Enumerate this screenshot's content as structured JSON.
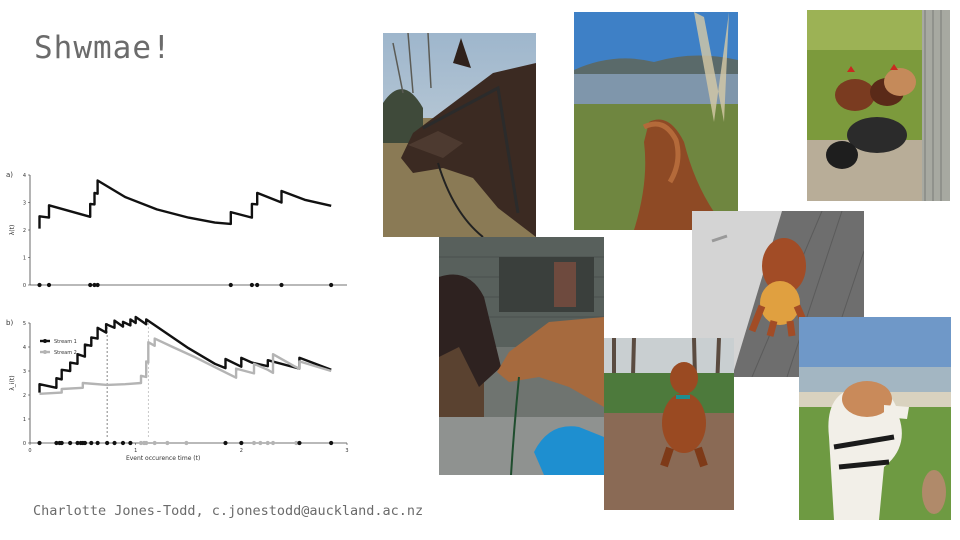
{
  "slide": {
    "title": "Shwmae!",
    "credit": "Charlotte Jones-Todd, c.jonestodd@auckland.ac.nz"
  },
  "photos": [
    "horse-portrait",
    "lake-view-with-horse-mane",
    "chickens-on-tyre",
    "horses-nuzzling-at-stable",
    "dog-on-wooden-floor",
    "dog-sitting-in-forest",
    "dog-on-beach-grass"
  ],
  "chart_data": [
    {
      "type": "line",
      "panel_label": "a)",
      "ylabel": "λ(t)",
      "ylim": [
        0,
        4
      ],
      "yticks": [
        "0",
        "1",
        "2",
        "3",
        "4"
      ],
      "xlim": [
        0,
        3
      ],
      "grid": false,
      "color": "#111111",
      "series": [
        {
          "values": [
            [
              0.09,
              2.05
            ],
            [
              0.09,
              2.5
            ],
            [
              0.18,
              2.45
            ],
            [
              0.18,
              2.9
            ],
            [
              0.57,
              2.48
            ],
            [
              0.57,
              2.95
            ],
            [
              0.61,
              2.93
            ],
            [
              0.61,
              3.35
            ],
            [
              0.64,
              3.32
            ],
            [
              0.64,
              3.8
            ],
            [
              0.9,
              3.2
            ],
            [
              1.2,
              2.75
            ],
            [
              1.5,
              2.45
            ],
            [
              1.75,
              2.27
            ],
            [
              1.9,
              2.22
            ],
            [
              1.9,
              2.65
            ],
            [
              2.1,
              2.45
            ],
            [
              2.1,
              2.95
            ],
            [
              2.15,
              2.93
            ],
            [
              2.15,
              3.35
            ],
            [
              2.38,
              3.0
            ],
            [
              2.38,
              3.42
            ],
            [
              2.6,
              3.1
            ],
            [
              2.85,
              2.88
            ]
          ]
        }
      ],
      "events": [
        0.09,
        0.18,
        0.57,
        0.61,
        0.64,
        1.9,
        2.1,
        2.15,
        2.38,
        2.85
      ]
    },
    {
      "type": "line",
      "panel_label": "b)",
      "ylabel": "λ_i(t)",
      "xlabel": "Event occurence time (t)",
      "ylim": [
        0,
        5
      ],
      "yticks": [
        "0",
        "1",
        "2",
        "3",
        "4",
        "5"
      ],
      "xlim": [
        0,
        3
      ],
      "xticks": [
        "0",
        "1",
        "2",
        "3"
      ],
      "grid": false,
      "legend_position": "top-left",
      "vlines": [
        0.73,
        1.12
      ],
      "series": [
        {
          "name": "Stream 1",
          "color": "#111111",
          "values": [
            [
              0.09,
              2.1
            ],
            [
              0.09,
              2.45
            ],
            [
              0.25,
              2.3
            ],
            [
              0.25,
              2.7
            ],
            [
              0.3,
              2.65
            ],
            [
              0.3,
              3.05
            ],
            [
              0.38,
              3.0
            ],
            [
              0.38,
              3.35
            ],
            [
              0.45,
              3.3
            ],
            [
              0.45,
              3.7
            ],
            [
              0.52,
              3.6
            ],
            [
              0.52,
              4.1
            ],
            [
              0.58,
              4.05
            ],
            [
              0.58,
              4.4
            ],
            [
              0.64,
              4.35
            ],
            [
              0.64,
              4.8
            ],
            [
              0.72,
              4.6
            ],
            [
              0.72,
              4.95
            ],
            [
              0.8,
              4.8
            ],
            [
              0.8,
              5.1
            ],
            [
              0.88,
              4.85
            ],
            [
              0.88,
              5.05
            ],
            [
              0.95,
              4.9
            ],
            [
              0.95,
              5.15
            ],
            [
              1.0,
              5.0
            ],
            [
              1.0,
              5.25
            ],
            [
              1.1,
              4.95
            ],
            [
              1.1,
              5.15
            ],
            [
              1.5,
              3.95
            ],
            [
              1.75,
              3.3
            ],
            [
              1.85,
              3.12
            ],
            [
              1.85,
              3.5
            ],
            [
              2.0,
              3.18
            ],
            [
              2.0,
              3.55
            ],
            [
              2.1,
              3.35
            ],
            [
              2.25,
              3.2
            ],
            [
              2.25,
              3.45
            ],
            [
              2.55,
              3.1
            ],
            [
              2.55,
              3.55
            ],
            [
              2.85,
              3.05
            ]
          ]
        },
        {
          "name": "Stream 2",
          "color": "#b4b4b4",
          "values": [
            [
              0.09,
              2.05
            ],
            [
              0.3,
              2.1
            ],
            [
              0.3,
              2.25
            ],
            [
              0.5,
              2.3
            ],
            [
              0.5,
              2.5
            ],
            [
              0.73,
              2.42
            ],
            [
              0.9,
              2.45
            ],
            [
              1.05,
              2.5
            ],
            [
              1.05,
              2.8
            ],
            [
              1.1,
              2.75
            ],
            [
              1.1,
              3.4
            ],
            [
              1.12,
              3.35
            ],
            [
              1.12,
              4.2
            ],
            [
              1.18,
              4.05
            ],
            [
              1.18,
              4.35
            ],
            [
              1.35,
              4.0
            ],
            [
              1.55,
              3.6
            ],
            [
              1.8,
              3.05
            ],
            [
              1.95,
              2.72
            ],
            [
              1.95,
              3.1
            ],
            [
              2.12,
              2.9
            ],
            [
              2.12,
              3.3
            ],
            [
              2.25,
              3.05
            ],
            [
              2.3,
              2.92
            ],
            [
              2.3,
              3.7
            ],
            [
              2.5,
              3.2
            ],
            [
              2.55,
              3.1
            ],
            [
              2.55,
              3.4
            ],
            [
              2.85,
              3.0
            ]
          ]
        }
      ],
      "events": [
        {
          "t": 0.09,
          "stream": 1
        },
        {
          "t": 0.25,
          "stream": 1
        },
        {
          "t": 0.28,
          "stream": 1
        },
        {
          "t": 0.3,
          "stream": 1
        },
        {
          "t": 0.38,
          "stream": 1
        },
        {
          "t": 0.45,
          "stream": 1
        },
        {
          "t": 0.48,
          "stream": 1
        },
        {
          "t": 0.5,
          "stream": 1
        },
        {
          "t": 0.52,
          "stream": 1
        },
        {
          "t": 0.58,
          "stream": 1
        },
        {
          "t": 0.64,
          "stream": 1
        },
        {
          "t": 0.73,
          "stream": 1
        },
        {
          "t": 0.8,
          "stream": 1
        },
        {
          "t": 0.88,
          "stream": 1
        },
        {
          "t": 0.95,
          "stream": 1
        },
        {
          "t": 1.05,
          "stream": 2
        },
        {
          "t": 1.08,
          "stream": 2
        },
        {
          "t": 1.1,
          "stream": 2
        },
        {
          "t": 1.18,
          "stream": 2
        },
        {
          "t": 1.3,
          "stream": 2
        },
        {
          "t": 1.48,
          "stream": 2
        },
        {
          "t": 1.85,
          "stream": 1
        },
        {
          "t": 2.0,
          "stream": 1
        },
        {
          "t": 2.12,
          "stream": 2
        },
        {
          "t": 2.18,
          "stream": 2
        },
        {
          "t": 2.25,
          "stream": 2
        },
        {
          "t": 2.3,
          "stream": 2
        },
        {
          "t": 2.52,
          "stream": 2
        },
        {
          "t": 2.55,
          "stream": 1
        },
        {
          "t": 2.85,
          "stream": 1
        }
      ]
    }
  ]
}
